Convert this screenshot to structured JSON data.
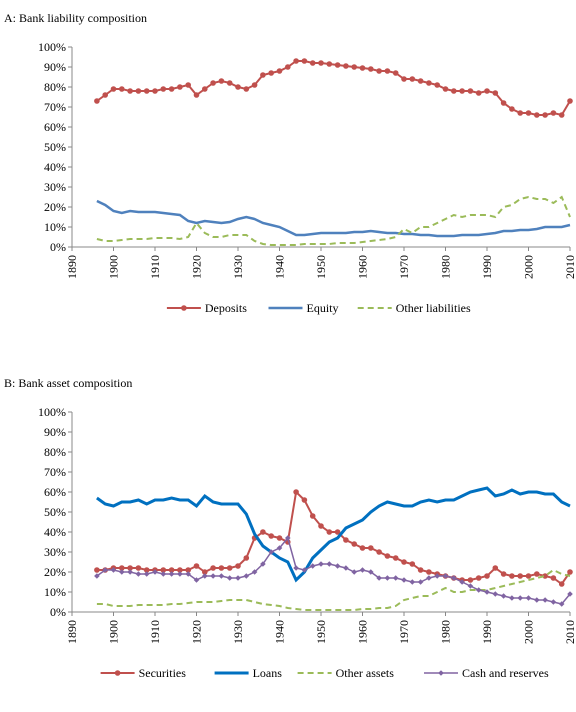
{
  "chart_data": [
    {
      "type": "line",
      "title": "A: Bank liability composition",
      "x": [
        1896,
        1898,
        1900,
        1902,
        1904,
        1906,
        1908,
        1910,
        1912,
        1914,
        1916,
        1918,
        1920,
        1922,
        1924,
        1926,
        1928,
        1930,
        1932,
        1934,
        1936,
        1938,
        1940,
        1942,
        1944,
        1946,
        1948,
        1950,
        1952,
        1954,
        1956,
        1958,
        1960,
        1962,
        1964,
        1966,
        1968,
        1970,
        1972,
        1974,
        1976,
        1978,
        1980,
        1982,
        1984,
        1986,
        1988,
        1990,
        1992,
        1994,
        1996,
        1998,
        2000,
        2002,
        2004,
        2006,
        2008,
        2010
      ],
      "series": [
        {
          "name": "Deposits",
          "color": "#c0504d",
          "marker": "circle",
          "dash": false,
          "width": 2,
          "values": [
            73,
            76,
            79,
            79,
            78,
            78,
            78,
            78,
            79,
            79,
            80,
            81,
            76,
            79,
            82,
            83,
            82,
            80,
            79,
            81,
            86,
            87,
            88,
            90,
            93,
            93,
            92,
            92,
            91.5,
            91,
            90.5,
            90,
            89.5,
            89,
            88,
            88,
            87,
            84,
            84,
            83,
            82,
            81,
            79,
            78,
            78,
            78,
            77,
            78,
            77,
            72,
            69,
            67,
            67,
            66,
            66,
            67,
            66,
            73
          ]
        },
        {
          "name": "Equity",
          "color": "#4f81bd",
          "marker": "none",
          "dash": false,
          "width": 2.5,
          "values": [
            23,
            21,
            18,
            17,
            18,
            17.5,
            17.5,
            17.5,
            17,
            16.5,
            16,
            13,
            12,
            13,
            12.5,
            12,
            12.5,
            14,
            15,
            14,
            12,
            11,
            10,
            8,
            6,
            6,
            6.5,
            7,
            7,
            7,
            7,
            7.5,
            7.5,
            8,
            7.5,
            7,
            7,
            6.5,
            6.5,
            6,
            6,
            5.5,
            5.5,
            5.5,
            6,
            6,
            6,
            6.5,
            7,
            8,
            8,
            8.5,
            8.5,
            9,
            10,
            10,
            10,
            11
          ]
        },
        {
          "name": "Other liabilities",
          "color": "#9bbb59",
          "marker": "none",
          "dash": true,
          "width": 2,
          "values": [
            4,
            3,
            3,
            3.5,
            4,
            4,
            4,
            4.5,
            4.5,
            4.5,
            4,
            5,
            12,
            7,
            5,
            5,
            6,
            6,
            6,
            3,
            1.5,
            1,
            1,
            1,
            1,
            1.5,
            1.5,
            1.5,
            1.5,
            2,
            2,
            2,
            2.5,
            3,
            3.5,
            4,
            5,
            9,
            7,
            10,
            10,
            12,
            14,
            16,
            15,
            16,
            16,
            16,
            15,
            20,
            21,
            24,
            25,
            24,
            24,
            22,
            25,
            15
          ]
        }
      ],
      "xlim": [
        1890,
        2010
      ],
      "xticks": [
        1890,
        1900,
        1910,
        1920,
        1930,
        1940,
        1950,
        1960,
        1970,
        1980,
        1990,
        2000,
        2010
      ],
      "ylim": [
        0,
        100
      ],
      "yticks": [
        {
          "value": 0,
          "label": "0%"
        },
        {
          "value": 10,
          "label": "10%"
        },
        {
          "value": 20,
          "label": "20%"
        },
        {
          "value": 30,
          "label": "30%"
        },
        {
          "value": 40,
          "label": "40%"
        },
        {
          "value": 50,
          "label": "50%"
        },
        {
          "value": 60,
          "label": "60%"
        },
        {
          "value": 70,
          "label": "70%"
        },
        {
          "value": 80,
          "label": "80%"
        },
        {
          "value": 90,
          "label": "90%"
        },
        {
          "value": 100,
          "label": "100%"
        }
      ],
      "grid": false,
      "legend": "bottom"
    },
    {
      "type": "line",
      "title": "B: Bank asset composition",
      "x": [
        1896,
        1898,
        1900,
        1902,
        1904,
        1906,
        1908,
        1910,
        1912,
        1914,
        1916,
        1918,
        1920,
        1922,
        1924,
        1926,
        1928,
        1930,
        1932,
        1934,
        1936,
        1938,
        1940,
        1942,
        1944,
        1946,
        1948,
        1950,
        1952,
        1954,
        1956,
        1958,
        1960,
        1962,
        1964,
        1966,
        1968,
        1970,
        1972,
        1974,
        1976,
        1978,
        1980,
        1982,
        1984,
        1986,
        1988,
        1990,
        1992,
        1994,
        1996,
        1998,
        2000,
        2002,
        2004,
        2006,
        2008,
        2010
      ],
      "series": [
        {
          "name": "Securities",
          "color": "#c0504d",
          "marker": "circle",
          "dash": false,
          "width": 2,
          "values": [
            21,
            21,
            22,
            22,
            22,
            22,
            21,
            21,
            21,
            21,
            21,
            21,
            23,
            20,
            22,
            22,
            22,
            23,
            27,
            37,
            40,
            38,
            37,
            35,
            60,
            56,
            48,
            43,
            40,
            40,
            36,
            34,
            32,
            32,
            30,
            28,
            27,
            25,
            24,
            21,
            20,
            19,
            18,
            17,
            16,
            16,
            17,
            18,
            22,
            19,
            18,
            18,
            18,
            19,
            18,
            17,
            14,
            20
          ]
        },
        {
          "name": "Loans",
          "color": "#0070c0",
          "marker": "none",
          "dash": false,
          "width": 3,
          "values": [
            57,
            54,
            53,
            55,
            55,
            56,
            54,
            56,
            56,
            57,
            56,
            56,
            53,
            58,
            55,
            54,
            54,
            54,
            49,
            39,
            33,
            30,
            27,
            25,
            16,
            20,
            27,
            31,
            35,
            37,
            42,
            44,
            46,
            50,
            53,
            55,
            54,
            53,
            53,
            55,
            56,
            55,
            56,
            56,
            58,
            60,
            61,
            62,
            58,
            59,
            61,
            59,
            60,
            60,
            59,
            59,
            55,
            53
          ]
        },
        {
          "name": "Other assets",
          "color": "#9bbb59",
          "marker": "none",
          "dash": true,
          "width": 2,
          "values": [
            4,
            4,
            3,
            3,
            3,
            3.5,
            3.5,
            3.5,
            3.5,
            4,
            4,
            4.5,
            5,
            5,
            5,
            5.5,
            6,
            6,
            6,
            5,
            4,
            3.5,
            3,
            2,
            1.5,
            1,
            1,
            1,
            1,
            1,
            1,
            1,
            1.5,
            1.5,
            2,
            2,
            3,
            6,
            7,
            8,
            8,
            10,
            12,
            10,
            10,
            11,
            11,
            11,
            12,
            13,
            14,
            15,
            16,
            17,
            18,
            21,
            19,
            18
          ]
        },
        {
          "name": "Cash and reserves",
          "color": "#8064a2",
          "marker": "diamond",
          "dash": false,
          "width": 1.5,
          "values": [
            18,
            21,
            21,
            20,
            20,
            19,
            19,
            20,
            19,
            19,
            19,
            19,
            16,
            18,
            18,
            18,
            17,
            17,
            18,
            20,
            24,
            30,
            32,
            37,
            22,
            21,
            23,
            24,
            24,
            23,
            22,
            20,
            21,
            20,
            17,
            17,
            17,
            16,
            15,
            15,
            17,
            18,
            18,
            17,
            15,
            13,
            11,
            10,
            9,
            8,
            7,
            7,
            7,
            6,
            6,
            5,
            4,
            9
          ]
        }
      ],
      "xlim": [
        1890,
        2010
      ],
      "xticks": [
        1890,
        1900,
        1910,
        1920,
        1930,
        1940,
        1950,
        1960,
        1970,
        1980,
        1990,
        2000,
        2010
      ],
      "ylim": [
        0,
        100
      ],
      "yticks": [
        {
          "value": 0,
          "label": "0%"
        },
        {
          "value": 10,
          "label": "10%"
        },
        {
          "value": 20,
          "label": "20%"
        },
        {
          "value": 30,
          "label": "30%"
        },
        {
          "value": 40,
          "label": "40%"
        },
        {
          "value": 50,
          "label": "50%"
        },
        {
          "value": 60,
          "label": "60%"
        },
        {
          "value": 70,
          "label": "70%"
        },
        {
          "value": 80,
          "label": "80%"
        },
        {
          "value": 90,
          "label": "90%"
        },
        {
          "value": 100,
          "label": "100%"
        }
      ],
      "grid": false,
      "legend": "bottom"
    }
  ]
}
